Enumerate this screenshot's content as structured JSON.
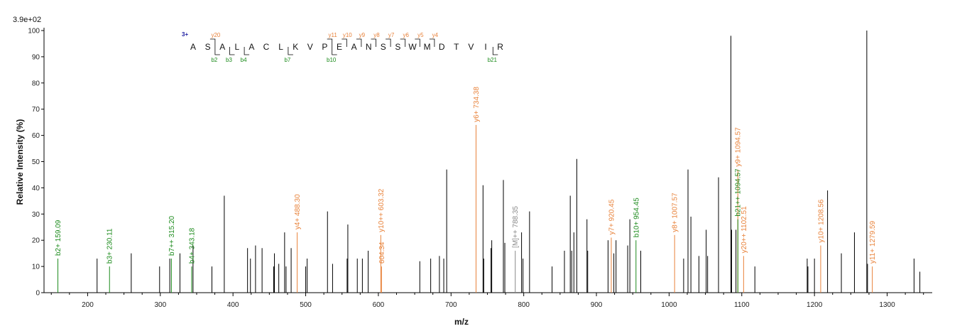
{
  "chart_data": {
    "type": "bar",
    "scale_label": "3.9e+02",
    "xlabel": "m/z",
    "ylabel": "Relative  Intensity (%)",
    "xlim": [
      140,
      1362
    ],
    "ylim": [
      0,
      100
    ],
    "x_ticks": [
      200,
      300,
      400,
      500,
      600,
      700,
      800,
      900,
      1000,
      1100,
      1200,
      1300
    ],
    "y_ticks": [
      0,
      10,
      20,
      30,
      40,
      50,
      60,
      70,
      80,
      90,
      100
    ],
    "colors": {
      "b": "#1a8a1a",
      "y": "#e8823a",
      "precursor": "#888888",
      "other": "#000000",
      "charge": "#1a1aa0"
    },
    "peaks": [
      {
        "x": 159.09,
        "y": 13,
        "type": "b",
        "label": "b2+ 159.09"
      },
      {
        "x": 213,
        "y": 13,
        "type": "other"
      },
      {
        "x": 230.11,
        "y": 10,
        "type": "b",
        "label": "b3+ 230.11"
      },
      {
        "x": 260,
        "y": 15,
        "type": "other"
      },
      {
        "x": 299,
        "y": 10,
        "type": "other"
      },
      {
        "x": 313,
        "y": 13,
        "type": "other"
      },
      {
        "x": 315.2,
        "y": 13,
        "type": "b",
        "label": "b7++ 315.20"
      },
      {
        "x": 327,
        "y": 15,
        "type": "other"
      },
      {
        "x": 343.18,
        "y": 10,
        "type": "b",
        "label": "b4+ 343.18"
      },
      {
        "x": 345,
        "y": 18,
        "type": "other"
      },
      {
        "x": 371,
        "y": 10,
        "type": "other"
      },
      {
        "x": 388,
        "y": 37,
        "type": "other"
      },
      {
        "x": 420,
        "y": 17,
        "type": "other"
      },
      {
        "x": 424,
        "y": 13,
        "type": "other"
      },
      {
        "x": 431,
        "y": 18,
        "type": "other"
      },
      {
        "x": 440,
        "y": 17,
        "type": "other"
      },
      {
        "x": 456,
        "y": 10,
        "type": "other"
      },
      {
        "x": 457,
        "y": 15,
        "type": "other"
      },
      {
        "x": 463,
        "y": 11,
        "type": "other"
      },
      {
        "x": 471,
        "y": 23,
        "type": "other"
      },
      {
        "x": 473,
        "y": 10,
        "type": "other"
      },
      {
        "x": 480,
        "y": 17,
        "type": "other"
      },
      {
        "x": 488.3,
        "y": 23,
        "type": "y",
        "label": "y4+ 488.30"
      },
      {
        "x": 500,
        "y": 10,
        "type": "other"
      },
      {
        "x": 502,
        "y": 13,
        "type": "other"
      },
      {
        "x": 530,
        "y": 31,
        "type": "other"
      },
      {
        "x": 537,
        "y": 11,
        "type": "other"
      },
      {
        "x": 557,
        "y": 13,
        "type": "other"
      },
      {
        "x": 558,
        "y": 26,
        "type": "other"
      },
      {
        "x": 571,
        "y": 13,
        "type": "other"
      },
      {
        "x": 578,
        "y": 13,
        "type": "other"
      },
      {
        "x": 586,
        "y": 16,
        "type": "other"
      },
      {
        "x": 603.32,
        "y": 22,
        "type": "y",
        "label": "y10++ 603.32"
      },
      {
        "x": 604.34,
        "y": 10,
        "type": "y",
        "label": "604.34"
      },
      {
        "x": 657,
        "y": 12,
        "type": "other"
      },
      {
        "x": 672,
        "y": 13,
        "type": "other"
      },
      {
        "x": 684,
        "y": 14,
        "type": "other"
      },
      {
        "x": 690,
        "y": 13,
        "type": "other"
      },
      {
        "x": 694,
        "y": 47,
        "type": "other"
      },
      {
        "x": 734.38,
        "y": 64,
        "type": "y",
        "label": "y6+ 734.38"
      },
      {
        "x": 744,
        "y": 41,
        "type": "other"
      },
      {
        "x": 745,
        "y": 13,
        "type": "other"
      },
      {
        "x": 755,
        "y": 17,
        "type": "other"
      },
      {
        "x": 756,
        "y": 20,
        "type": "other"
      },
      {
        "x": 772,
        "y": 43,
        "type": "other"
      },
      {
        "x": 774,
        "y": 19,
        "type": "other"
      },
      {
        "x": 788.35,
        "y": 16,
        "type": "precursor",
        "label": "[M]++ 788.35"
      },
      {
        "x": 797,
        "y": 23,
        "type": "other"
      },
      {
        "x": 799,
        "y": 13,
        "type": "other"
      },
      {
        "x": 808,
        "y": 31,
        "type": "other"
      },
      {
        "x": 839,
        "y": 10,
        "type": "other"
      },
      {
        "x": 856,
        "y": 16,
        "type": "other"
      },
      {
        "x": 864,
        "y": 37,
        "type": "other"
      },
      {
        "x": 866,
        "y": 16,
        "type": "other"
      },
      {
        "x": 869,
        "y": 23,
        "type": "other"
      },
      {
        "x": 873,
        "y": 51,
        "type": "other"
      },
      {
        "x": 887,
        "y": 28,
        "type": "other"
      },
      {
        "x": 888,
        "y": 16,
        "type": "other"
      },
      {
        "x": 916,
        "y": 20,
        "type": "other"
      },
      {
        "x": 920.45,
        "y": 21,
        "type": "y",
        "label": "y7+ 920.45"
      },
      {
        "x": 924,
        "y": 15,
        "type": "other"
      },
      {
        "x": 927,
        "y": 20,
        "type": "other"
      },
      {
        "x": 943,
        "y": 18,
        "type": "other"
      },
      {
        "x": 946,
        "y": 28,
        "type": "other"
      },
      {
        "x": 954.45,
        "y": 20,
        "type": "b",
        "label": "b10+ 954.45"
      },
      {
        "x": 961,
        "y": 16,
        "type": "other"
      },
      {
        "x": 1007.57,
        "y": 22,
        "type": "y",
        "label": "y8+ 1007.57"
      },
      {
        "x": 1020,
        "y": 13,
        "type": "other"
      },
      {
        "x": 1026,
        "y": 47,
        "type": "other"
      },
      {
        "x": 1030,
        "y": 29,
        "type": "other"
      },
      {
        "x": 1041,
        "y": 14,
        "type": "other"
      },
      {
        "x": 1051,
        "y": 24,
        "type": "other"
      },
      {
        "x": 1053,
        "y": 14,
        "type": "other"
      },
      {
        "x": 1068,
        "y": 44,
        "type": "other"
      },
      {
        "x": 1085,
        "y": 98,
        "type": "other"
      },
      {
        "x": 1086,
        "y": 24,
        "type": "other"
      },
      {
        "x": 1092,
        "y": 24,
        "type": "other"
      },
      {
        "x": 1094.57,
        "y": 47,
        "type": "y",
        "label": "y9+ 1094.57"
      },
      {
        "x": 1094.6,
        "y": 28,
        "type": "b",
        "label": "b21++ 1094.57"
      },
      {
        "x": 1102.51,
        "y": 14,
        "type": "y",
        "label": "y20++ 1102.51"
      },
      {
        "x": 1118,
        "y": 10,
        "type": "other"
      },
      {
        "x": 1190,
        "y": 13,
        "type": "other"
      },
      {
        "x": 1191,
        "y": 10,
        "type": "other"
      },
      {
        "x": 1200,
        "y": 13,
        "type": "other"
      },
      {
        "x": 1208.56,
        "y": 18,
        "type": "y",
        "label": "y10+ 1208.56"
      },
      {
        "x": 1218,
        "y": 39,
        "type": "other"
      },
      {
        "x": 1237,
        "y": 15,
        "type": "other"
      },
      {
        "x": 1255,
        "y": 23,
        "type": "other"
      },
      {
        "x": 1272,
        "y": 100,
        "type": "other"
      },
      {
        "x": 1273,
        "y": 11,
        "type": "other"
      },
      {
        "x": 1279.59,
        "y": 10,
        "type": "y",
        "label": "y11+ 1279.59"
      },
      {
        "x": 1337,
        "y": 13,
        "type": "other"
      },
      {
        "x": 1345,
        "y": 8,
        "type": "other"
      }
    ],
    "sequence": {
      "charge": "3+",
      "residues": [
        "A",
        "S",
        "A",
        "L",
        "A",
        "C",
        "L",
        "K",
        "V",
        "P",
        "E",
        "A",
        "N",
        "S",
        "S",
        "W",
        "M",
        "D",
        "T",
        "V",
        "I",
        "R"
      ],
      "y_ions": [
        {
          "after": 2,
          "label": "y20"
        },
        {
          "after": 10,
          "label": "y11"
        },
        {
          "after": 11,
          "label": "y10"
        },
        {
          "after": 12,
          "label": "y9"
        },
        {
          "after": 13,
          "label": "y8"
        },
        {
          "after": 14,
          "label": "y7"
        },
        {
          "after": 15,
          "label": "y6"
        },
        {
          "after": 16,
          "label": "y5"
        },
        {
          "after": 17,
          "label": "y4"
        }
      ],
      "b_ions": [
        {
          "after": 2,
          "label": "b2"
        },
        {
          "after": 3,
          "label": "b3"
        },
        {
          "after": 4,
          "label": "b4"
        },
        {
          "after": 7,
          "label": "b7"
        },
        {
          "after": 10,
          "label": "b10"
        },
        {
          "after": 21,
          "label": "b21"
        }
      ]
    }
  }
}
